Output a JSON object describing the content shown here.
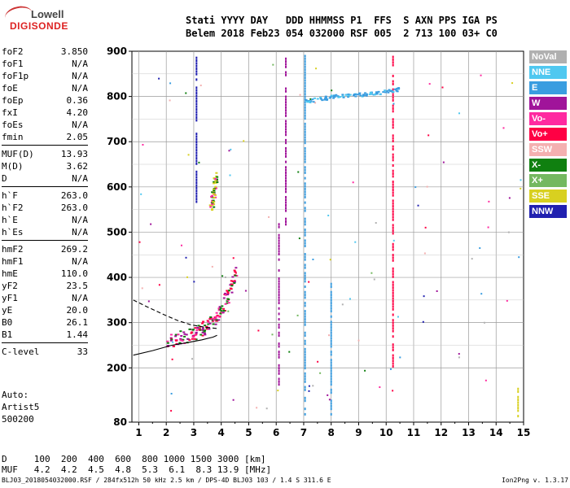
{
  "logo": {
    "top": "Lowell",
    "bottom": "DIGISONDE"
  },
  "header": {
    "line1": "Stati YYYY DAY   DDD HHMMSS P1  FFS  S AXN PPS IGA PS",
    "line2": "Belem 2018 Feb23 054 032000 RSF 005  2 713 100 03+ C0"
  },
  "params": [
    {
      "label": "foF2",
      "value": "3.850"
    },
    {
      "label": "foF1",
      "value": "N/A"
    },
    {
      "label": "foF1p",
      "value": "N/A"
    },
    {
      "label": "foE",
      "value": "N/A"
    },
    {
      "label": "foEp",
      "value": "0.36"
    },
    {
      "label": "fxI",
      "value": "4.20"
    },
    {
      "label": "foEs",
      "value": "N/A"
    },
    {
      "label": "fmin",
      "value": "2.05"
    },
    {
      "label": "MUF(D)",
      "value": "13.93"
    },
    {
      "label": "M(D)",
      "value": "3.62"
    },
    {
      "label": "D",
      "value": "N/A"
    },
    {
      "label": "h`F",
      "value": "263.0"
    },
    {
      "label": "h`F2",
      "value": "263.0"
    },
    {
      "label": "h`E",
      "value": "N/A"
    },
    {
      "label": "h`Es",
      "value": "N/A"
    },
    {
      "label": "hmF2",
      "value": "269.2"
    },
    {
      "label": "hmF1",
      "value": "N/A"
    },
    {
      "label": "hmE",
      "value": "110.0"
    },
    {
      "label": "yF2",
      "value": "23.5"
    },
    {
      "label": "yF1",
      "value": "N/A"
    },
    {
      "label": "yE",
      "value": "20.0"
    },
    {
      "label": "B0",
      "value": "26.1"
    },
    {
      "label": "B1",
      "value": "1.44"
    },
    {
      "label": "C-level",
      "value": "33"
    }
  ],
  "auto": {
    "l1": "Auto:",
    "l2": "Artist5",
    "l3": "500200"
  },
  "legend": [
    {
      "label": "NoVal",
      "color": "#b0b0b0"
    },
    {
      "label": "NNE",
      "color": "#4fc8f0"
    },
    {
      "label": "E",
      "color": "#3a9de0"
    },
    {
      "label": "W",
      "color": "#a0149a"
    },
    {
      "label": "Vo-",
      "color": "#ff2aa0"
    },
    {
      "label": "Vo+",
      "color": "#ff0044"
    },
    {
      "label": "SSW",
      "color": "#f4b0b0"
    },
    {
      "label": "X-",
      "color": "#108010"
    },
    {
      "label": "X+",
      "color": "#74b860"
    },
    {
      "label": "SSE",
      "color": "#d8d020"
    },
    {
      "label": "NNW",
      "color": "#2020b0"
    }
  ],
  "bottom": {
    "d_row": "D     100  200  400  600  800 1000 1500 3000 [km]",
    "muf_row": "MUF   4.2  4.2  4.5  4.8  5.3  6.1  8.3 13.9 [MHz]"
  },
  "footer": {
    "left": "BLJ03_2018054032000.RSF / 284fx512h 50 kHz 2.5 km / DPS-4D BLJ03 103 / 1.4 S 311.6 E",
    "right": "Ion2Png v. 1.3.17"
  },
  "chart_data": {
    "type": "scatter",
    "x_ticks": [
      1,
      2,
      3,
      4,
      5,
      6,
      7,
      8,
      9,
      10,
      11,
      12,
      13,
      14,
      15
    ],
    "y_ticks": [
      80,
      200,
      300,
      400,
      500,
      600,
      700,
      800,
      900
    ],
    "xlim": [
      0.75,
      15
    ],
    "ylim": [
      80,
      900
    ],
    "grid": true,
    "trace_F2": [
      [
        2.0,
        262
      ],
      [
        2.3,
        265
      ],
      [
        2.6,
        270
      ],
      [
        2.9,
        275
      ],
      [
        3.1,
        280
      ],
      [
        3.3,
        288
      ],
      [
        3.5,
        296
      ],
      [
        3.7,
        305
      ],
      [
        3.85,
        318
      ],
      [
        4.0,
        335
      ],
      [
        4.2,
        360
      ],
      [
        4.35,
        385
      ],
      [
        4.5,
        410
      ]
    ],
    "trace_multi": [
      [
        3.6,
        550
      ],
      [
        3.65,
        570
      ],
      [
        3.7,
        590
      ],
      [
        3.75,
        610
      ],
      [
        3.8,
        625
      ]
    ],
    "trace_E_ray": [
      [
        7.0,
        790
      ],
      [
        7.5,
        795
      ],
      [
        8.0,
        800
      ],
      [
        8.5,
        803
      ],
      [
        9.0,
        805
      ],
      [
        9.5,
        808
      ],
      [
        10.0,
        812
      ],
      [
        10.5,
        818
      ]
    ],
    "vertical_streaks": [
      {
        "x": 6.35,
        "y0": 520,
        "y1": 895,
        "color": "#a0149a"
      },
      {
        "x": 6.1,
        "y0": 160,
        "y1": 530,
        "color": "#a0149a"
      },
      {
        "x": 7.05,
        "y0": 100,
        "y1": 895,
        "color": "#3a9de0"
      },
      {
        "x": 8.0,
        "y0": 100,
        "y1": 400,
        "color": "#3a9de0"
      },
      {
        "x": 10.25,
        "y0": 200,
        "y1": 895,
        "color": "#ff0044"
      },
      {
        "x": 3.1,
        "y0": 570,
        "y1": 895,
        "color": "#2020b0"
      },
      {
        "x": 14.8,
        "y0": 90,
        "y1": 160,
        "color": "#d8d020"
      }
    ],
    "profile_solid": [
      [
        0.8,
        228
      ],
      [
        1.5,
        238
      ],
      [
        2.2,
        250
      ],
      [
        2.8,
        256
      ],
      [
        3.3,
        262
      ],
      [
        3.7,
        268
      ],
      [
        3.85,
        272
      ]
    ],
    "profile_dashed": [
      [
        0.8,
        350
      ],
      [
        1.3,
        335
      ],
      [
        1.9,
        318
      ],
      [
        2.4,
        305
      ],
      [
        2.9,
        295
      ],
      [
        3.4,
        290
      ],
      [
        3.85,
        287
      ]
    ]
  }
}
